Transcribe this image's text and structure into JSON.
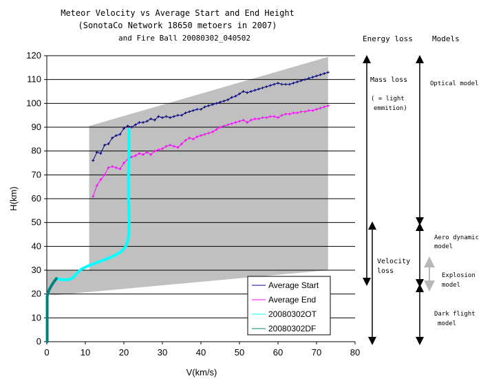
{
  "chart_data": {
    "type": "line",
    "title": [
      "Meteor Velocity vs Average Start and End Height",
      "(SonotaCo Network 18650 metoers in 2007)",
      "and Fire Ball 20080302_040502"
    ],
    "xlabel": "V(km/s)",
    "ylabel": "H(km)",
    "xlim": [
      0,
      80
    ],
    "ylim": [
      0,
      120
    ],
    "xticks": [
      0,
      10,
      20,
      30,
      40,
      50,
      60,
      70,
      80
    ],
    "yticks": [
      0,
      10,
      20,
      30,
      40,
      50,
      60,
      70,
      80,
      90,
      100,
      110,
      120
    ],
    "grid": "horizontal",
    "legend_position": "bottom-right",
    "shaded_region": {
      "color": "#c0c0c0",
      "points": [
        [
          0,
          20
        ],
        [
          0,
          30
        ],
        [
          11,
          30
        ],
        [
          11,
          90.5
        ],
        [
          73,
          119.5
        ],
        [
          73,
          30
        ],
        [
          2,
          19.5
        ]
      ]
    },
    "series": [
      {
        "name": "Average Start",
        "color": "#000080",
        "marker": "plus",
        "x": [
          12,
          13,
          14,
          15,
          16,
          17,
          18,
          19,
          20,
          21,
          22,
          23,
          24,
          25,
          26,
          27,
          28,
          29,
          30,
          31,
          32,
          33,
          34,
          35,
          36,
          37,
          38,
          39,
          40,
          41,
          42,
          43,
          44,
          45,
          46,
          47,
          48,
          49,
          50,
          51,
          52,
          53,
          54,
          55,
          56,
          57,
          58,
          59,
          60,
          61,
          62,
          63,
          64,
          65,
          66,
          67,
          68,
          69,
          70,
          71,
          72,
          73
        ],
        "y": [
          76,
          79.5,
          79,
          82.5,
          83,
          85.5,
          86.5,
          87,
          89.5,
          90.5,
          90,
          91,
          92,
          92,
          92.5,
          93.5,
          93,
          94.5,
          94,
          94.5,
          94,
          94.5,
          95,
          95,
          96,
          96.5,
          97,
          97.5,
          97.5,
          98.5,
          99,
          99.5,
          100,
          100.5,
          101,
          101.5,
          102.5,
          103,
          104,
          105,
          104.5,
          105,
          105.5,
          106,
          106.5,
          107,
          107.5,
          108,
          108.5,
          108,
          108,
          108,
          108.5,
          109,
          109.5,
          110,
          110.5,
          111,
          111.5,
          112,
          112.5,
          113
        ]
      },
      {
        "name": "Average End",
        "color": "#ff00ff",
        "marker": "plus",
        "x": [
          12,
          13,
          14,
          15,
          16,
          17,
          18,
          19,
          20,
          21,
          22,
          23,
          24,
          25,
          26,
          27,
          28,
          29,
          30,
          31,
          32,
          33,
          34,
          35,
          36,
          37,
          38,
          39,
          40,
          41,
          42,
          43,
          44,
          45,
          46,
          47,
          48,
          49,
          50,
          51,
          52,
          53,
          54,
          55,
          56,
          57,
          58,
          59,
          60,
          61,
          62,
          63,
          64,
          65,
          66,
          67,
          68,
          69,
          70,
          71,
          72,
          73
        ],
        "y": [
          61,
          65.5,
          68,
          70,
          73,
          73.5,
          73,
          72.5,
          75,
          76.5,
          77.5,
          78,
          79,
          78.5,
          79.5,
          78.5,
          80,
          80.5,
          81,
          82,
          82.5,
          82,
          81.5,
          83,
          84.5,
          85.5,
          85,
          86,
          86.5,
          87,
          87.5,
          88,
          89,
          90,
          90.5,
          91,
          91.5,
          92,
          92.5,
          93,
          92,
          93,
          93.5,
          93.5,
          94,
          94,
          94.5,
          94.5,
          94,
          95,
          95.5,
          95.5,
          96,
          96,
          96.5,
          96.5,
          97,
          97,
          97.5,
          98,
          98.5,
          99
        ]
      },
      {
        "name": "20080302OT",
        "color": "#00ffff",
        "marker": "none",
        "x": [
          21.3,
          21.3,
          21.2,
          21.2,
          21.3,
          21.4,
          21.3,
          21.2,
          21.0,
          20.5,
          19.5,
          18.0,
          16.0,
          13.5,
          11.0,
          9.0,
          8.0,
          7.2,
          6.5,
          5.5,
          4.0,
          2.5
        ],
        "y": [
          89,
          80,
          70,
          60,
          55,
          50,
          47,
          44,
          42,
          40,
          38,
          36.5,
          35,
          33.5,
          32,
          30.5,
          29,
          27.5,
          26.5,
          26,
          26,
          26.5
        ]
      },
      {
        "name": "20080302DF",
        "color": "#008080",
        "marker": "none",
        "x": [
          2.5,
          1.8,
          1.2,
          0.7,
          0.3,
          0.1,
          0.1,
          0.1,
          0.1
        ],
        "y": [
          26.5,
          25,
          23.5,
          22,
          20.5,
          19,
          10,
          3,
          0
        ]
      }
    ],
    "annotations": {
      "column_headers": [
        "Energy loss",
        "Models"
      ],
      "energy_loss": [
        {
          "text": "Mass loss",
          "y_range": [
            25,
            120
          ]
        },
        {
          "text": "( = light emmition)"
        },
        {
          "text": "Velocity loss",
          "y_range": [
            0,
            50
          ]
        }
      ],
      "models": [
        {
          "text": "Optical model",
          "y_range": [
            50,
            120
          ]
        },
        {
          "text": "Aero dynamic model",
          "y_range": [
            25,
            50
          ]
        },
        {
          "text": "Explosion model",
          "y_range": [
            23,
            33
          ]
        },
        {
          "text": "Dark flight model",
          "y_range": [
            0,
            23
          ]
        }
      ]
    }
  }
}
